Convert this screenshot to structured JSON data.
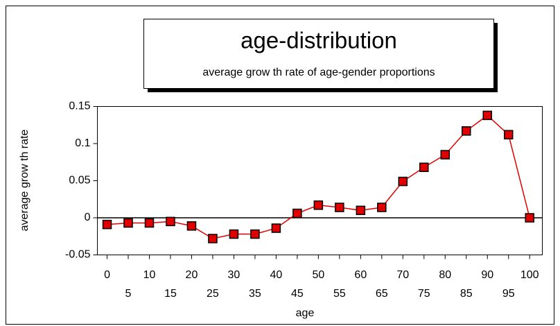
{
  "chart_data": {
    "type": "line",
    "title": "age-distribution",
    "subtitle": "average grow th rate of age-gender proportions",
    "x_label": "age",
    "y_label": "average grow th rate",
    "x": [
      0,
      5,
      10,
      15,
      20,
      25,
      30,
      35,
      40,
      45,
      50,
      55,
      60,
      65,
      70,
      75,
      80,
      85,
      90,
      95,
      100
    ],
    "series": [
      {
        "color": "#e00000",
        "values": [
          -0.009,
          -0.007,
          -0.007,
          -0.005,
          -0.011,
          -0.028,
          -0.022,
          -0.022,
          -0.014,
          0.006,
          0.017,
          0.014,
          0.01,
          0.014,
          0.049,
          0.068,
          0.085,
          0.117,
          0.138,
          0.112,
          0.0
        ]
      }
    ],
    "xlim": [
      -2.3,
      103
    ],
    "xticks": [
      0,
      5,
      10,
      15,
      20,
      25,
      30,
      35,
      40,
      45,
      50,
      55,
      60,
      65,
      70,
      75,
      80,
      85,
      90,
      95,
      100
    ],
    "ylim": [
      -0.05,
      0.15
    ],
    "yticks": [
      -0.05,
      0,
      0.05,
      0.1,
      0.15
    ],
    "zero_line": true,
    "grid": false
  }
}
